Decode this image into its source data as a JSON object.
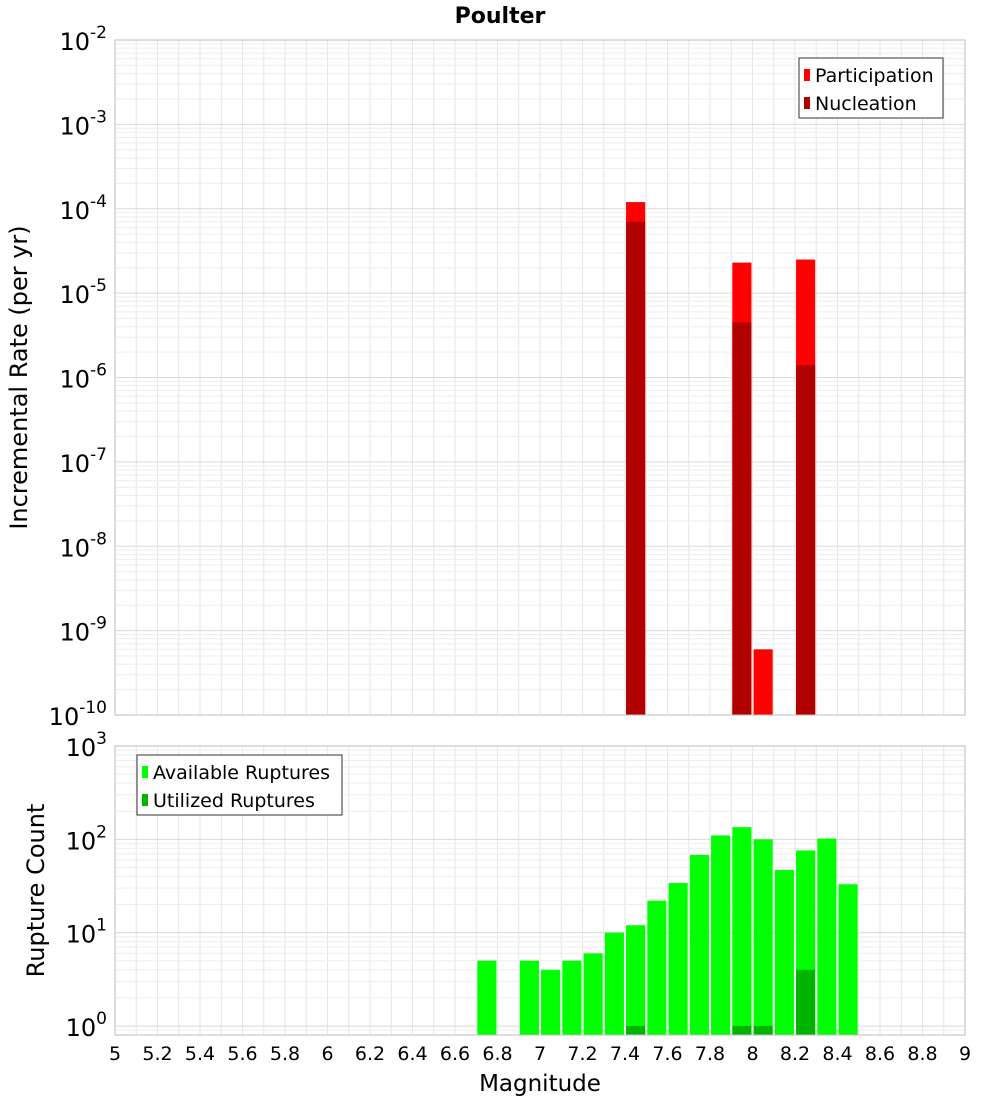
{
  "title": "Poulter",
  "colors": {
    "participation": "#ff0000",
    "nucleation": "#b00000",
    "available": "#00ff00",
    "utilized": "#00b400",
    "grid": "#e6e6e6",
    "frame": "#bdbdbd"
  },
  "chart_data": [
    {
      "type": "bar",
      "log_y": true,
      "ylabel": "Incremental Rate (per yr)",
      "ylim": [
        1e-10,
        0.01
      ],
      "y_ticks": [
        {
          "value": 1e-10,
          "base": "10",
          "exp": "-10"
        },
        {
          "value": 1e-09,
          "base": "10",
          "exp": "-9"
        },
        {
          "value": 1e-08,
          "base": "10",
          "exp": "-8"
        },
        {
          "value": 1e-07,
          "base": "10",
          "exp": "-7"
        },
        {
          "value": 1e-06,
          "base": "10",
          "exp": "-6"
        },
        {
          "value": 1e-05,
          "base": "10",
          "exp": "-5"
        },
        {
          "value": 0.0001,
          "base": "10",
          "exp": "-4"
        },
        {
          "value": 0.001,
          "base": "10",
          "exp": "-3"
        },
        {
          "value": 0.01,
          "base": "10",
          "exp": "-2"
        }
      ],
      "legend": {
        "placement": "top-right",
        "entries": [
          "Participation",
          "Nucleation"
        ]
      },
      "series": [
        {
          "name": "Participation",
          "x": [
            7.45,
            7.95,
            8.05,
            8.25
          ],
          "values": [
            0.00012,
            2.3e-05,
            6e-10,
            2.5e-05
          ]
        },
        {
          "name": "Nucleation",
          "x": [
            7.45,
            7.95,
            8.25
          ],
          "values": [
            7e-05,
            4.5e-06,
            1.4e-06
          ]
        }
      ]
    },
    {
      "type": "bar",
      "log_y": true,
      "ylabel": "Rupture Count",
      "xlabel": "Magnitude",
      "ylim": [
        0.8,
        1000
      ],
      "xlim": [
        5,
        9
      ],
      "x_ticks": [
        "5",
        "5.2",
        "5.4",
        "5.6",
        "5.8",
        "6",
        "6.2",
        "6.4",
        "6.6",
        "6.8",
        "7",
        "7.2",
        "7.4",
        "7.6",
        "7.8",
        "8",
        "8.2",
        "8.4",
        "8.6",
        "8.8",
        "9"
      ],
      "y_ticks": [
        {
          "value": 1,
          "base": "10",
          "exp": "0"
        },
        {
          "value": 10,
          "base": "10",
          "exp": "1"
        },
        {
          "value": 100,
          "base": "10",
          "exp": "2"
        },
        {
          "value": 1000,
          "base": "10",
          "exp": "3"
        }
      ],
      "legend": {
        "placement": "top-left",
        "entries": [
          "Available Ruptures",
          "Utilized Ruptures"
        ]
      },
      "series": [
        {
          "name": "Available Ruptures",
          "x": [
            6.75,
            6.95,
            7.05,
            7.15,
            7.25,
            7.35,
            7.45,
            7.55,
            7.65,
            7.75,
            7.85,
            7.95,
            8.05,
            8.15,
            8.25,
            8.35,
            8.45
          ],
          "values": [
            5,
            5,
            4,
            5,
            6,
            10,
            12,
            22,
            34,
            68,
            110,
            135,
            100,
            47,
            76,
            102,
            33
          ]
        },
        {
          "name": "Utilized Ruptures",
          "x": [
            7.45,
            7.95,
            8.05,
            8.25
          ],
          "values": [
            1,
            1,
            1,
            4
          ]
        }
      ]
    }
  ]
}
